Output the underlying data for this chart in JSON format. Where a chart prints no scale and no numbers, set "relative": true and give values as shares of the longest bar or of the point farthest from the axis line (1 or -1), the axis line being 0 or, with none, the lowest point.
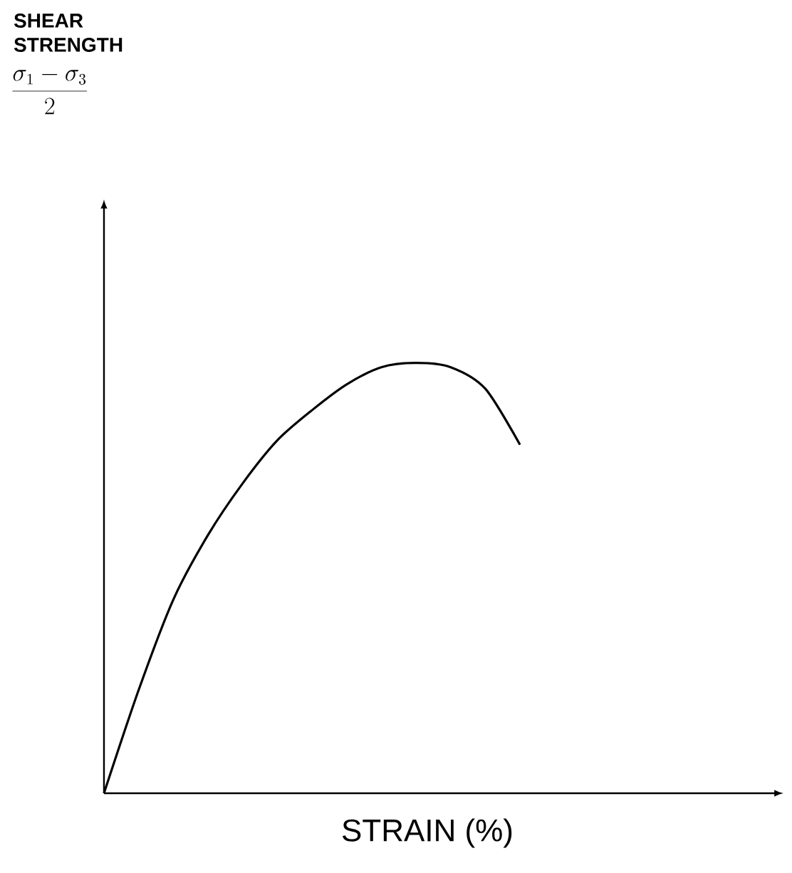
{
  "chart_data": {
    "type": "line",
    "relative": true,
    "xlabel": "STRAIN (%)",
    "annotations": [
      "SHEAR STRENGTH",
      "\\frac{\\sigma_1-\\sigma_3}{2}"
    ],
    "categories": [
      null,
      null,
      null,
      null,
      null,
      null,
      null,
      null,
      null,
      null,
      null,
      null,
      null,
      null,
      null,
      null,
      null,
      null,
      null,
      null
    ],
    "color": "#000000",
    "values": [
      0,
      0.24,
      0.45,
      0.6,
      0.72,
      0.82,
      0.89,
      0.95,
      0.99,
      1.0,
      0.99,
      0.94,
      0.81,
      null,
      null,
      null,
      null,
      null,
      null,
      null
    ]
  }
}
